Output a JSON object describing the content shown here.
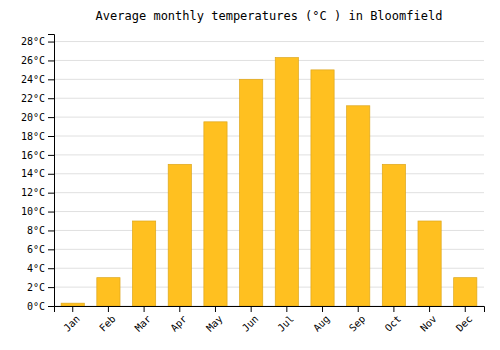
{
  "chart_data": {
    "type": "bar",
    "title": "Average monthly temperatures (°C ) in Bloomfield",
    "categories": [
      "Jan",
      "Feb",
      "Mar",
      "Apr",
      "May",
      "Jun",
      "Jul",
      "Aug",
      "Sep",
      "Oct",
      "Nov",
      "Dec"
    ],
    "values": [
      0.3,
      3.0,
      9.0,
      15.0,
      19.5,
      24.0,
      26.3,
      25.0,
      21.2,
      15.0,
      9.0,
      3.0
    ],
    "color": "#FFC020",
    "ylim": [
      0,
      28.8
    ],
    "yticks": [
      {
        "value": 0,
        "label": "0°C"
      },
      {
        "value": 2,
        "label": "2°C"
      },
      {
        "value": 4,
        "label": "4°C"
      },
      {
        "value": 6,
        "label": "6°C"
      },
      {
        "value": 8,
        "label": "8°C"
      },
      {
        "value": 10,
        "label": "10°C"
      },
      {
        "value": 12,
        "label": "12°C"
      },
      {
        "value": 14,
        "label": "14°C"
      },
      {
        "value": 16,
        "label": "16°C"
      },
      {
        "value": 18,
        "label": "18°C"
      },
      {
        "value": 20,
        "label": "20°C"
      },
      {
        "value": 22,
        "label": "22°C"
      },
      {
        "value": 24,
        "label": "24°C"
      },
      {
        "value": 26,
        "label": "26°C"
      },
      {
        "value": 28,
        "label": "28°C"
      }
    ],
    "grid": true
  }
}
